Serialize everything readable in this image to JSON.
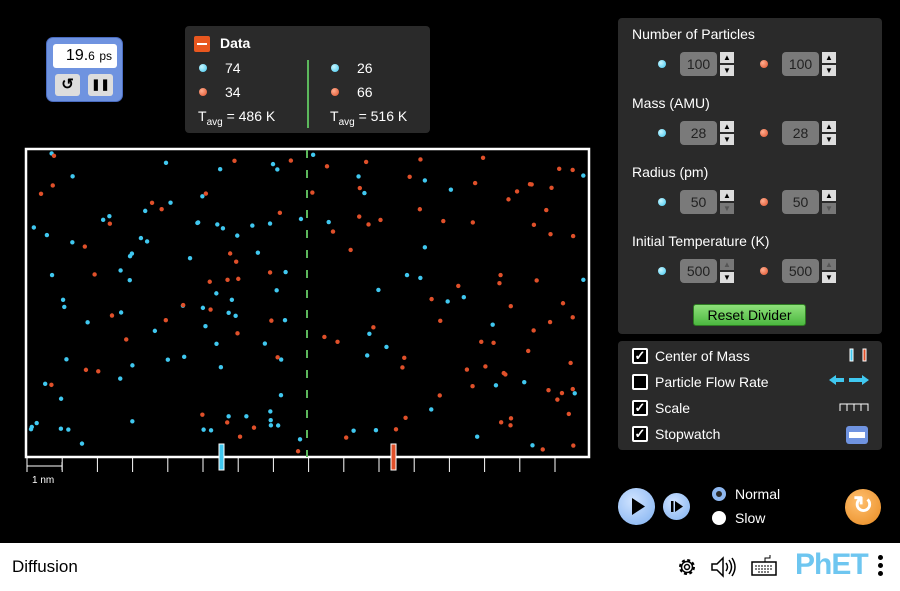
{
  "stopwatch": {
    "value": "19.",
    "decimal": "6",
    "unit": "ps",
    "reset_icon": "↺",
    "pause_icon": "❚❚"
  },
  "data_panel": {
    "title": "Data",
    "left": {
      "cyan": "74",
      "red": "34",
      "tavg_label": "T",
      "tavg_sub": "avg",
      "tavg_value": " = 486 K"
    },
    "right": {
      "cyan": "26",
      "red": "66",
      "tavg_label": "T",
      "tavg_sub": "avg",
      "tavg_value": " = 516 K"
    }
  },
  "controls": {
    "sections": [
      {
        "label": "Number of Particles",
        "cyan": "100",
        "red": "100",
        "up_enabled": [
          true,
          true
        ],
        "down_enabled": [
          true,
          true
        ]
      },
      {
        "label": "Mass (AMU)",
        "cyan": "28",
        "red": "28",
        "up_enabled": [
          true,
          true
        ],
        "down_enabled": [
          true,
          true
        ]
      },
      {
        "label": "Radius (pm)",
        "cyan": "50",
        "red": "50",
        "up_enabled": [
          true,
          true
        ],
        "down_enabled": [
          false,
          false
        ]
      },
      {
        "label": "Initial Temperature (K)",
        "cyan": "500",
        "red": "500",
        "up_enabled": [
          false,
          false
        ],
        "down_enabled": [
          true,
          true
        ]
      }
    ],
    "reset_divider": "Reset Divider"
  },
  "options": [
    {
      "label": "Center of Mass",
      "checked": true,
      "icon": "center-of-mass-icon"
    },
    {
      "label": "Particle Flow Rate",
      "checked": false,
      "icon": "flow-rate-arrows-icon"
    },
    {
      "label": "Scale",
      "checked": true,
      "icon": "scale-ruler-icon"
    },
    {
      "label": "Stopwatch",
      "checked": true,
      "icon": "stopwatch-icon"
    }
  ],
  "scale_label": "1 nm",
  "speed": {
    "options": [
      "Normal",
      "Slow"
    ],
    "selected": "Normal"
  },
  "app_title": "Diffusion",
  "brand": "PhET",
  "colors": {
    "cyan": "#40c8f0",
    "red": "#e0502a",
    "divider": "#5cb85c",
    "panel": "#2a2a2a"
  },
  "particle_counts": {
    "left_cyan": 74,
    "left_red": 34,
    "right_cyan": 26,
    "right_red": 66
  }
}
